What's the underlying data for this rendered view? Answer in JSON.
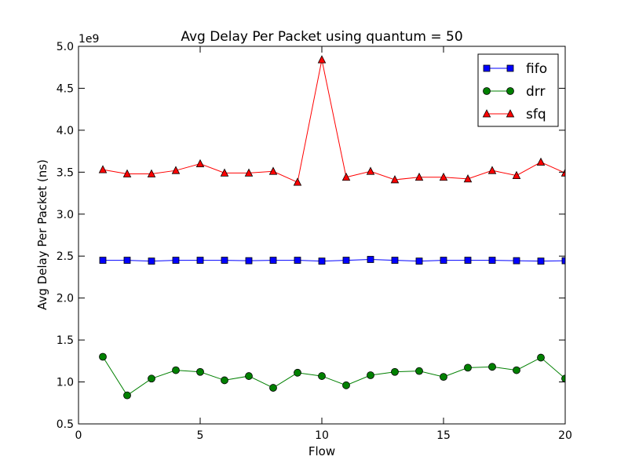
{
  "chart_data": {
    "type": "line",
    "title": "Avg Delay Per Packet using quantum = 50",
    "xlabel": "Flow",
    "ylabel": "Avg Delay Per Packet (ns)",
    "y_offset_label": "1e9",
    "xlim": [
      0,
      20
    ],
    "ylim": [
      0.5,
      5.0
    ],
    "xticks": [
      0,
      5,
      10,
      15,
      20
    ],
    "xtick_labels": [
      "0",
      "5",
      "10",
      "15",
      "20"
    ],
    "yticks": [
      0.5,
      1.0,
      1.5,
      2.0,
      2.5,
      3.0,
      3.5,
      4.0,
      4.5,
      5.0
    ],
    "ytick_labels": [
      "0.5",
      "1.0",
      "1.5",
      "2.0",
      "2.5",
      "3.0",
      "3.5",
      "4.0",
      "4.5",
      "5.0"
    ],
    "grid": false,
    "legend_position": "top-right",
    "x": [
      1,
      2,
      3,
      4,
      5,
      6,
      7,
      8,
      9,
      10,
      11,
      12,
      13,
      14,
      15,
      16,
      17,
      18,
      19,
      20
    ],
    "series": [
      {
        "name": "fifo",
        "color": "#0000ff",
        "marker": "square",
        "values": [
          2.45,
          2.45,
          2.44,
          2.45,
          2.45,
          2.45,
          2.445,
          2.45,
          2.45,
          2.44,
          2.45,
          2.46,
          2.45,
          2.44,
          2.45,
          2.45,
          2.45,
          2.445,
          2.44,
          2.445
        ]
      },
      {
        "name": "drr",
        "color": "#008000",
        "marker": "circle",
        "values": [
          1.3,
          0.84,
          1.04,
          1.14,
          1.12,
          1.02,
          1.07,
          0.93,
          1.11,
          1.07,
          0.96,
          1.08,
          1.12,
          1.13,
          1.06,
          1.17,
          1.18,
          1.14,
          1.29,
          1.04
        ]
      },
      {
        "name": "sfq",
        "color": "#ff0000",
        "marker": "triangle",
        "values": [
          3.53,
          3.48,
          3.48,
          3.52,
          3.6,
          3.49,
          3.49,
          3.51,
          3.38,
          4.84,
          3.44,
          3.51,
          3.41,
          3.44,
          3.44,
          3.42,
          3.52,
          3.46,
          3.62,
          3.49
        ]
      }
    ]
  }
}
